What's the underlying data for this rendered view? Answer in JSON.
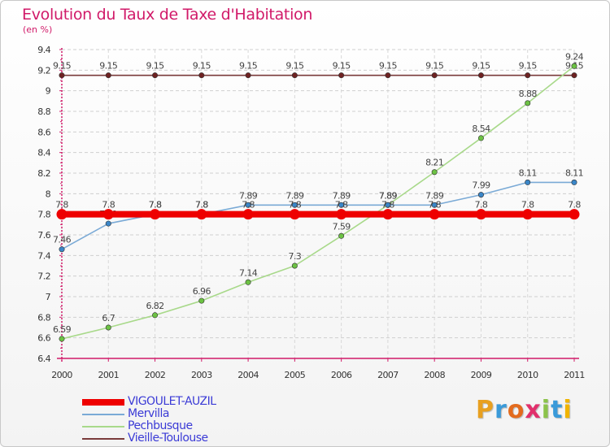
{
  "header": {
    "title": "Evolution du Taux de Taxe d'Habitation",
    "subtitle": "(en %)"
  },
  "logo": {
    "letters": [
      "P",
      "r",
      "o",
      "x",
      "i",
      "t",
      "i"
    ],
    "colors": [
      "#e8a020",
      "#3a9ad9",
      "#e36b1e",
      "#e1306c",
      "#8bc34a",
      "#3a9ad9",
      "#f0b400"
    ]
  },
  "chart_data": {
    "type": "line",
    "title": "Evolution du Taux de Taxe d'Habitation",
    "ylabel": "(en %)",
    "xlabel": "",
    "x": [
      "2000",
      "2001",
      "2002",
      "2003",
      "2004",
      "2005",
      "2006",
      "2007",
      "2008",
      "2009",
      "2010",
      "2011"
    ],
    "ylim": [
      6.4,
      9.4
    ],
    "yticks": [
      "6.4",
      "6.6",
      "6.8",
      "7",
      "7.2",
      "7.4",
      "7.6",
      "7.8",
      "8",
      "8.2",
      "8.4",
      "8.6",
      "8.8",
      "9",
      "9.2",
      "9.4"
    ],
    "grid": "horizontal dashed",
    "legend_position": "bottom-left",
    "series": [
      {
        "name": "Vieille-Toulouse",
        "color": "#7a3b3b",
        "marker": "#6e2222",
        "values": [
          9.15,
          9.15,
          9.15,
          9.15,
          9.15,
          9.15,
          9.15,
          9.15,
          9.15,
          9.15,
          9.15,
          9.15
        ],
        "labels": [
          "9.15",
          "9.15",
          "9.15",
          "9.15",
          "9.15",
          "9.15",
          "9.15",
          "9.15",
          "9.15",
          "9.15",
          "9.15",
          "9.15"
        ]
      },
      {
        "name": "Pechbusque",
        "color": "#a8d98a",
        "marker": "#6cc243",
        "values": [
          6.59,
          6.7,
          6.82,
          6.96,
          7.14,
          7.3,
          7.59,
          7.89,
          8.21,
          8.54,
          8.88,
          9.24
        ],
        "labels": [
          "6.59",
          "6.7",
          "6.82",
          "6.96",
          "7.14",
          "7.3",
          "7.59",
          "7.89",
          "8.21",
          "8.54",
          "8.88",
          "9.24"
        ]
      },
      {
        "name": "Mervilla",
        "color": "#7aaad6",
        "marker": "#3a86c8",
        "values": [
          7.46,
          7.71,
          7.8,
          7.8,
          7.89,
          7.89,
          7.89,
          7.89,
          7.89,
          7.99,
          8.11,
          8.11
        ],
        "labels": [
          "7.46",
          "7.71",
          "7.8",
          "7.8",
          "7.89",
          "7.89",
          "7.89",
          "7.89",
          "7.89",
          "7.99",
          "8.11",
          "8.11"
        ]
      },
      {
        "name": "VIGOULET-AUZIL",
        "color": "#ee0000",
        "marker": "#ee0000",
        "values": [
          7.8,
          7.8,
          7.8,
          7.8,
          7.8,
          7.8,
          7.8,
          7.8,
          7.8,
          7.8,
          7.8,
          7.8
        ],
        "labels": [
          "7.8",
          "7.8",
          "7.8",
          "7.8",
          "7.8",
          "7.8",
          "7.8",
          "7.8",
          "7.8",
          "7.8",
          "7.8",
          "7.8"
        ]
      }
    ],
    "legend": [
      "VIGOULET-AUZIL",
      "Mervilla",
      "Pechbusque",
      "Vieille-Toulouse"
    ]
  }
}
